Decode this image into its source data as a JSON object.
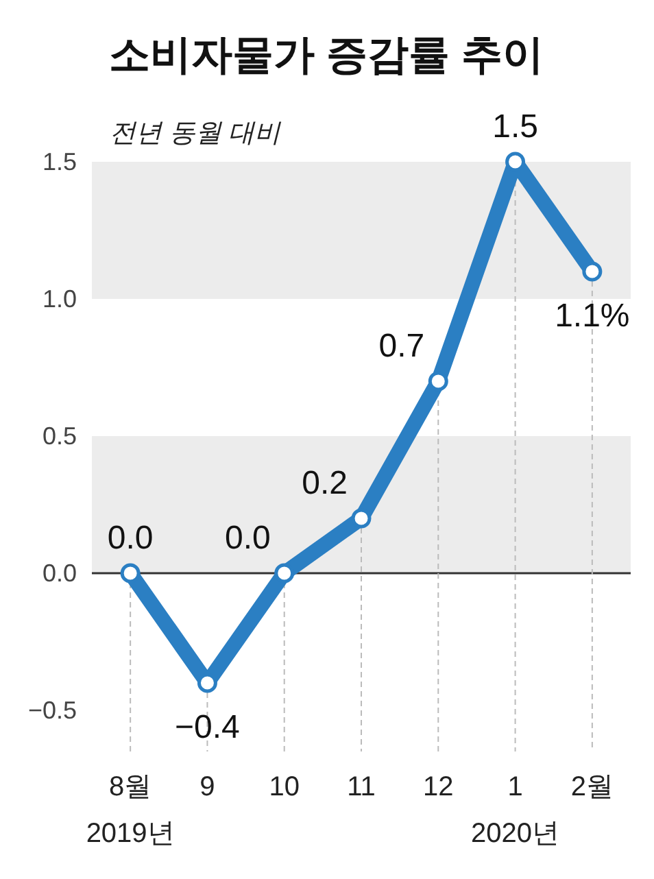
{
  "chart_data": {
    "type": "line",
    "title": "소비자물가 증감률 추이",
    "subtitle": "전년 동월 대비",
    "categories": [
      "8월\n2019년",
      "9",
      "10",
      "11",
      "12",
      "1\n2020년",
      "2월"
    ],
    "series": [
      {
        "color": "#2b7fc3",
        "values": [
          0.0,
          -0.4,
          0.0,
          0.2,
          0.7,
          1.5,
          1.1
        ],
        "value_labels": [
          "0.0",
          "−0.4",
          "0.0",
          "0.2",
          "0.7",
          "1.5",
          "1.1%"
        ]
      }
    ],
    "ylim": [
      -0.5,
      1.5
    ],
    "yticks": [
      {
        "value": -0.5,
        "label": "−0.5"
      },
      {
        "value": 0,
        "label": "0.0"
      },
      {
        "value": 0.5,
        "label": "0.5"
      },
      {
        "value": 1,
        "label": "1.0"
      },
      {
        "value": 1.5,
        "label": "1.5"
      }
    ],
    "bands": [
      {
        "axis": "y",
        "from": 1.0,
        "to": 1.5,
        "color": "#ececec"
      },
      {
        "axis": "y",
        "from": 0.0,
        "to": 0.5,
        "color": "#ececec"
      }
    ],
    "ref_lines": [
      {
        "axis": "y",
        "value": 0,
        "color": "#333333"
      }
    ],
    "grid": "x",
    "marker": "circle",
    "line_style": "solid"
  }
}
